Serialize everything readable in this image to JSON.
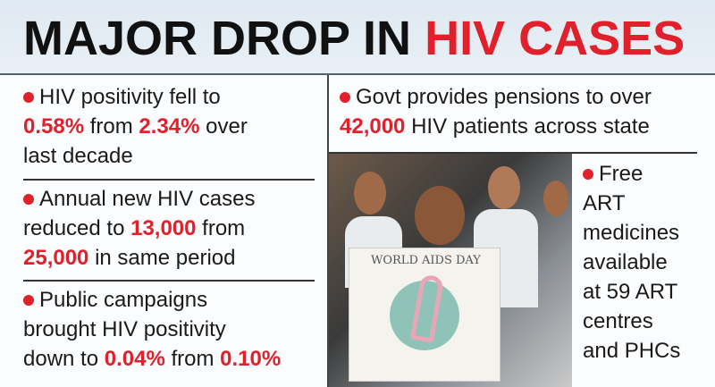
{
  "title": {
    "part1": "MAJOR DROP IN",
    "part2": "HIV CASES"
  },
  "left_points": [
    {
      "l1": "HIV positivity fell to",
      "v1": "0.58%",
      "m1": "from",
      "v2": "2.34%",
      "m2": "over",
      "l3": "last decade"
    },
    {
      "l1": "Annual new HIV cases",
      "m0": "reduced to",
      "v1": "13,000",
      "m1": "from",
      "v2": "25,000",
      "m2": "in same period"
    },
    {
      "l1": "Public campaigns",
      "l2": "brought HIV positivity",
      "m0": "down to",
      "v1": "0.04%",
      "m1": "from",
      "v2": "0.10%"
    }
  ],
  "right_top": {
    "l1": "Govt provides pensions to over",
    "v1": "42,000",
    "l2": "HIV patients across state"
  },
  "right_side": {
    "lines": [
      "Free",
      "ART",
      "medicines",
      "available",
      "at 59 ART",
      "centres",
      "and PHCs"
    ]
  },
  "photo": {
    "placard_text": "WORLD AIDS DAY"
  },
  "colors": {
    "accent": "#e0202a",
    "header_bg": "#e3ecf3"
  }
}
